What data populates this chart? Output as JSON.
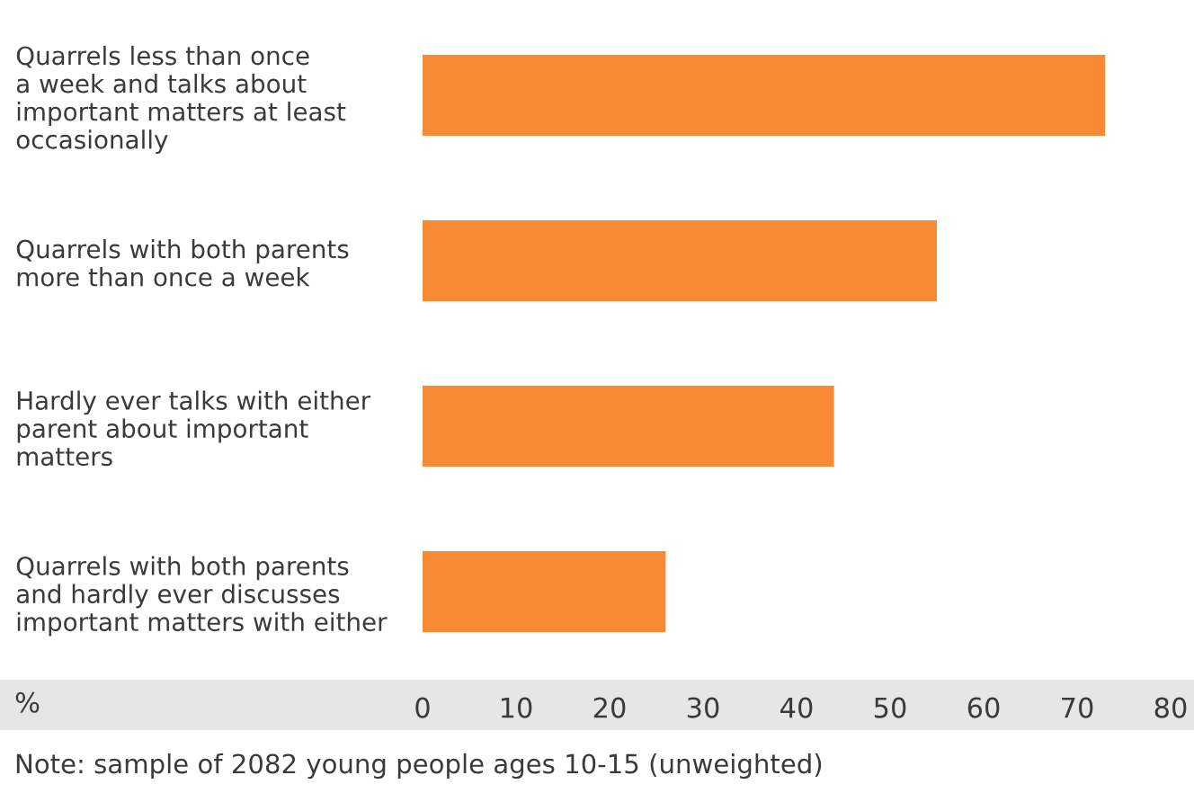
{
  "chart_data": {
    "type": "bar",
    "orientation": "horizontal",
    "categories": [
      "Quarrels less than once\na week and talks about\nimportant matters at least\noccasionally",
      "Quarrels with both parents\nmore than once a week",
      "Hardly ever talks with either\nparent about important\nmatters",
      "Quarrels with both parents\nand hardly ever discusses\nimportant matters with either"
    ],
    "values": [
      73,
      55,
      44,
      26
    ],
    "color": "#f68b33",
    "xlabel": "%",
    "xlim": [
      0,
      80
    ],
    "xticks": [
      0,
      10,
      20,
      30,
      40,
      50,
      60,
      70,
      80
    ],
    "grid": false,
    "legend": false,
    "annotations": [
      "Note: sample of 2082 young people ages 10-15 (unweighted)"
    ]
  }
}
